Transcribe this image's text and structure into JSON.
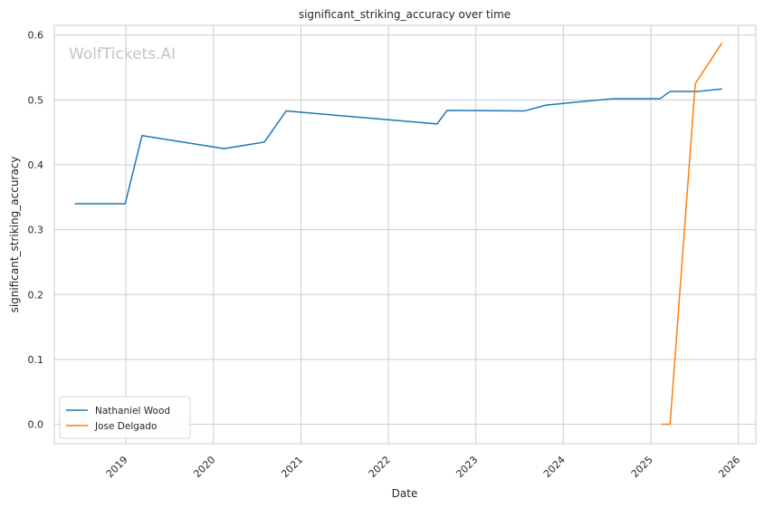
{
  "chart_data": {
    "type": "line",
    "title": "significant_striking_accuracy over time",
    "xlabel": "Date",
    "ylabel": "significant_striking_accuracy",
    "watermark": "WolfTickets.AI",
    "grid": true,
    "legend_position": "lower-left",
    "ylim": [
      -0.03,
      0.615
    ],
    "xlim": [
      "2018-03-08",
      "2026-03-15"
    ],
    "x_ticks": [
      "2019-01-01",
      "2020-01-01",
      "2021-01-01",
      "2022-01-01",
      "2023-01-01",
      "2024-01-01",
      "2025-01-01",
      "2026-01-01"
    ],
    "x_tick_labels": [
      "2019",
      "2020",
      "2021",
      "2022",
      "2023",
      "2024",
      "2025",
      "2026"
    ],
    "y_ticks": [
      0.0,
      0.1,
      0.2,
      0.3,
      0.4,
      0.5,
      0.6
    ],
    "y_tick_labels": [
      "0.0",
      "0.1",
      "0.2",
      "0.3",
      "0.4",
      "0.5",
      "0.6"
    ],
    "series": [
      {
        "name": "Nathaniel Wood",
        "color": "#1f77b4",
        "points": [
          {
            "x": "2018-06-01",
            "y": 0.34
          },
          {
            "x": "2018-12-29",
            "y": 0.34
          },
          {
            "x": "2019-03-09",
            "y": 0.445
          },
          {
            "x": "2020-02-15",
            "y": 0.425
          },
          {
            "x": "2020-08-01",
            "y": 0.435
          },
          {
            "x": "2020-10-31",
            "y": 0.483
          },
          {
            "x": "2022-07-23",
            "y": 0.463
          },
          {
            "x": "2022-09-03",
            "y": 0.484
          },
          {
            "x": "2023-07-22",
            "y": 0.483
          },
          {
            "x": "2023-10-21",
            "y": 0.492
          },
          {
            "x": "2024-07-27",
            "y": 0.502
          },
          {
            "x": "2025-02-08",
            "y": 0.502
          },
          {
            "x": "2025-03-22",
            "y": 0.513
          },
          {
            "x": "2025-07-12",
            "y": 0.513
          },
          {
            "x": "2025-10-25",
            "y": 0.517
          }
        ]
      },
      {
        "name": "Jose Delgado",
        "color": "#ff7f0e",
        "points": [
          {
            "x": "2025-02-15",
            "y": 0.0
          },
          {
            "x": "2025-03-22",
            "y": 0.0
          },
          {
            "x": "2025-07-05",
            "y": 0.525
          },
          {
            "x": "2025-10-25",
            "y": 0.588
          }
        ]
      }
    ]
  }
}
